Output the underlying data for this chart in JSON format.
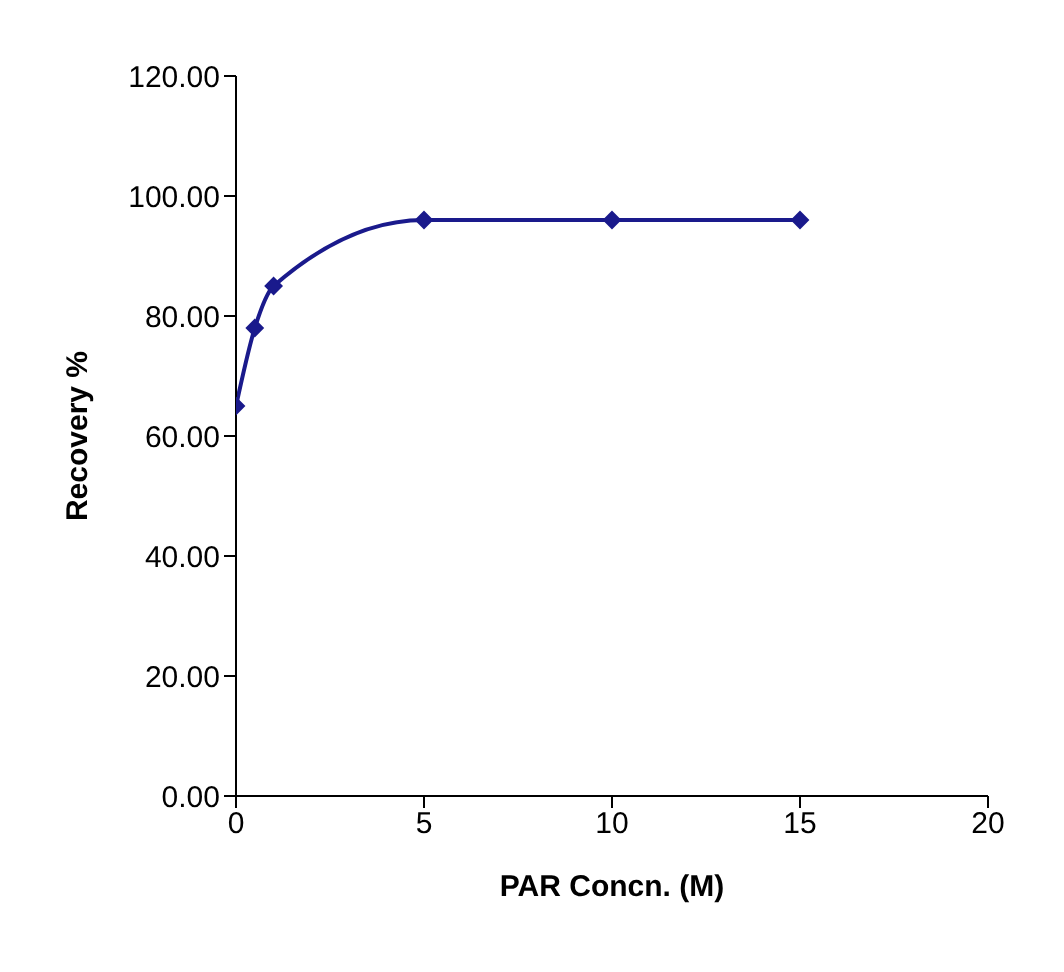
{
  "chart_data": {
    "type": "line",
    "xlabel": "PAR Concn. (M)",
    "ylabel": "Recovery %",
    "x": [
      0,
      0.5,
      1,
      5,
      10,
      15
    ],
    "series": [
      {
        "color": "#1a1a8c",
        "values": [
          65,
          78,
          85,
          96,
          96,
          96
        ]
      }
    ],
    "xlim": [
      0,
      20
    ],
    "xticks": [
      0,
      5,
      10,
      15,
      20
    ],
    "ylim": [
      0,
      120
    ],
    "yticks": [
      {
        "value": 0,
        "label": "0.00"
      },
      {
        "value": 20,
        "label": "20.00"
      },
      {
        "value": 40,
        "label": "40.00"
      },
      {
        "value": 60,
        "label": "60.00"
      },
      {
        "value": 80,
        "label": "80.00"
      },
      {
        "value": 100,
        "label": "100.00"
      },
      {
        "value": 120,
        "label": "120.00"
      }
    ],
    "grid": false,
    "legend": false,
    "marker": "diamond",
    "line_style": "solid"
  }
}
